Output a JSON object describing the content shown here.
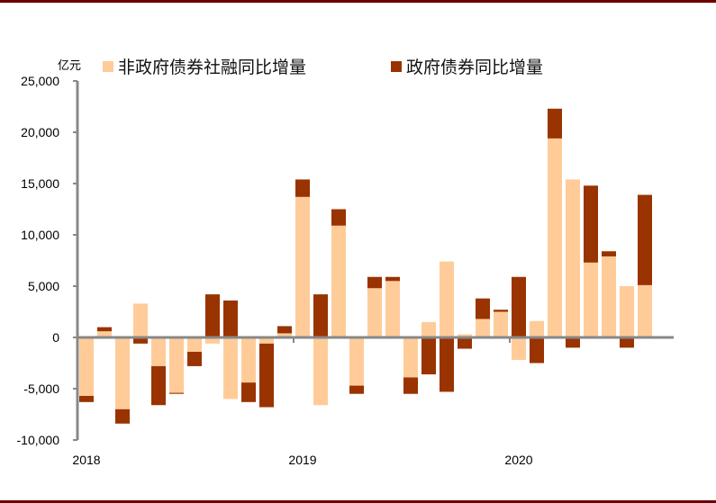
{
  "unit_label": "亿元",
  "legend": [
    {
      "label": "非政府债券社融同比增量",
      "color": "#FFCC99"
    },
    {
      "label": "政府债券同比增量",
      "color": "#993300"
    }
  ],
  "colors": {
    "rule": "#6b0000",
    "axis": "#888888",
    "non_gov": "#FFCC99",
    "gov": "#993300"
  },
  "chart_data": {
    "type": "bar",
    "stacked": true,
    "title": "",
    "xlabel": "",
    "ylabel": "亿元",
    "ylim": [
      -10000,
      25000
    ],
    "yticks": [
      25000,
      20000,
      15000,
      10000,
      5000,
      0,
      -5000,
      -10000
    ],
    "ytick_labels": [
      "25,000",
      "20,000",
      "15,000",
      "10,000",
      "5,000",
      "0",
      "-5,000",
      "-10,000"
    ],
    "xtick_labels": [
      "2018",
      "2019",
      "2020"
    ],
    "xtick_positions": [
      0,
      12,
      24
    ],
    "grid": false,
    "legend_position": "top",
    "categories": [
      "2018-01",
      "2018-02",
      "2018-03",
      "2018-04",
      "2018-05",
      "2018-06",
      "2018-07",
      "2018-08",
      "2018-09",
      "2018-10",
      "2018-11",
      "2018-12",
      "2019-01",
      "2019-02",
      "2019-03",
      "2019-04",
      "2019-05",
      "2019-06",
      "2019-07",
      "2019-08",
      "2019-09",
      "2019-10",
      "2019-11",
      "2019-12",
      "2020-01",
      "2020-02",
      "2020-03",
      "2020-04",
      "2020-05",
      "2020-06",
      "2020-07",
      "2020-08"
    ],
    "series": [
      {
        "name": "非政府债券社融同比增量",
        "values": [
          -5700,
          600,
          -7000,
          3300,
          -2800,
          -5400,
          -1400,
          -600,
          -6000,
          -4400,
          -600,
          400,
          13700,
          -6600,
          10900,
          -4700,
          4800,
          5500,
          -3900,
          1500,
          7400,
          300,
          1800,
          2500,
          -2200,
          1600,
          19400,
          15400,
          7300,
          7900,
          5000,
          5100
        ]
      },
      {
        "name": "政府债券同比增量",
        "values": [
          -600,
          400,
          -1400,
          -600,
          -3800,
          -100,
          -1400,
          4200,
          3600,
          -1900,
          -6200,
          700,
          1700,
          4200,
          1600,
          -800,
          1100,
          400,
          -1600,
          -3600,
          -5300,
          -1100,
          2000,
          200,
          5900,
          -2500,
          2900,
          -1000,
          7500,
          500,
          -1000,
          8800
        ]
      }
    ]
  }
}
